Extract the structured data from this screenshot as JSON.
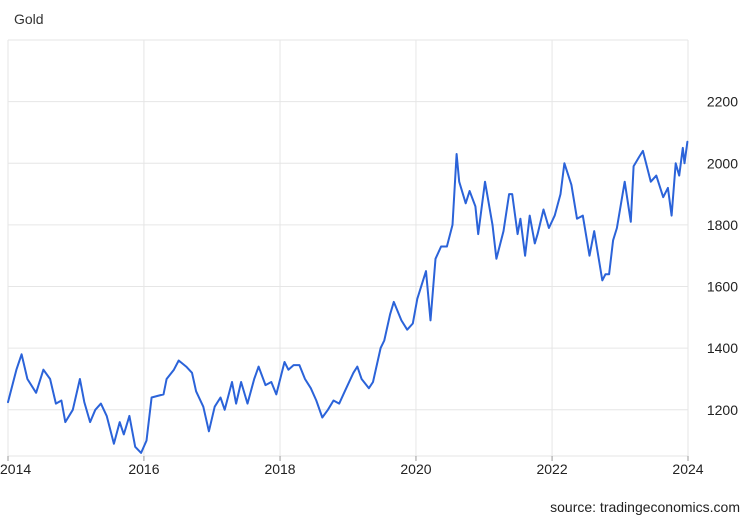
{
  "chart_data": {
    "type": "line",
    "title": "Gold",
    "xlabel": "",
    "ylabel": "",
    "source": "source: tradingeconomics.com",
    "color": "#2b63d9",
    "grid": true,
    "xlim": [
      "2014-01-01",
      "2024-01-01"
    ],
    "ylim": [
      1050,
      2400
    ],
    "x_ticks": [
      {
        "label": "2014",
        "date": "2014-01-01"
      },
      {
        "label": "2016",
        "date": "2016-01-01"
      },
      {
        "label": "2018",
        "date": "2018-01-01"
      },
      {
        "label": "2020",
        "date": "2020-01-01"
      },
      {
        "label": "2022",
        "date": "2022-01-01"
      },
      {
        "label": "2024",
        "date": "2024-01-01"
      }
    ],
    "y_ticks": [
      {
        "label": "1200",
        "value": 1200
      },
      {
        "label": "1400",
        "value": 1400
      },
      {
        "label": "1600",
        "value": 1600
      },
      {
        "label": "1800",
        "value": 1800
      },
      {
        "label": "2000",
        "value": 2000
      },
      {
        "label": "2200",
        "value": 2200
      }
    ],
    "series": [
      {
        "x": [
          "2014-01-01",
          "2014-02-15",
          "2014-03-15",
          "2014-04-15",
          "2014-06-01",
          "2014-07-10",
          "2014-08-15",
          "2014-09-15",
          "2014-10-15",
          "2014-11-05",
          "2014-12-15",
          "2015-01-22",
          "2015-02-15",
          "2015-03-18",
          "2015-04-15",
          "2015-05-15",
          "2015-06-15",
          "2015-07-24",
          "2015-08-24",
          "2015-09-15",
          "2015-10-15",
          "2015-11-15",
          "2015-12-17",
          "2016-01-15",
          "2016-02-11",
          "2016-03-15",
          "2016-04-15",
          "2016-05-02",
          "2016-06-10",
          "2016-07-06",
          "2016-08-15",
          "2016-09-15",
          "2016-10-07",
          "2016-11-15",
          "2016-12-15",
          "2017-01-15",
          "2017-02-15",
          "2017-03-10",
          "2017-04-18",
          "2017-05-10",
          "2017-06-06",
          "2017-07-10",
          "2017-08-15",
          "2017-09-08",
          "2017-10-15",
          "2017-11-15",
          "2017-12-12",
          "2018-01-25",
          "2018-02-15",
          "2018-03-15",
          "2018-04-15",
          "2018-05-15",
          "2018-06-15",
          "2018-07-15",
          "2018-08-16",
          "2018-09-15",
          "2018-10-15",
          "2018-11-15",
          "2018-12-15",
          "2019-01-30",
          "2019-02-20",
          "2019-03-15",
          "2019-04-23",
          "2019-05-15",
          "2019-06-25",
          "2019-07-15",
          "2019-08-15",
          "2019-09-04",
          "2019-10-15",
          "2019-11-15",
          "2019-12-15",
          "2020-01-08",
          "2020-02-24",
          "2020-03-19",
          "2020-04-15",
          "2020-05-15",
          "2020-06-15",
          "2020-07-15",
          "2020-08-06",
          "2020-08-20",
          "2020-09-24",
          "2020-10-15",
          "2020-11-15",
          "2020-11-30",
          "2021-01-06",
          "2021-02-15",
          "2021-03-08",
          "2021-04-15",
          "2021-05-15",
          "2021-06-01",
          "2021-06-30",
          "2021-07-15",
          "2021-08-09",
          "2021-09-03",
          "2021-09-30",
          "2021-10-15",
          "2021-11-16",
          "2021-12-15",
          "2022-01-15",
          "2022-02-15",
          "2022-03-08",
          "2022-04-15",
          "2022-05-15",
          "2022-06-15",
          "2022-07-21",
          "2022-08-15",
          "2022-09-28",
          "2022-10-15",
          "2022-11-03",
          "2022-11-25",
          "2022-12-15",
          "2023-01-26",
          "2023-02-28",
          "2023-03-15",
          "2023-04-13",
          "2023-05-04",
          "2023-06-15",
          "2023-07-15",
          "2023-08-21",
          "2023-09-15",
          "2023-10-05",
          "2023-10-27",
          "2023-11-15",
          "2023-12-04",
          "2023-12-13",
          "2023-12-29"
        ],
        "y": [
          1225,
          1330,
          1380,
          1300,
          1255,
          1330,
          1300,
          1220,
          1230,
          1160,
          1200,
          1300,
          1225,
          1160,
          1200,
          1220,
          1180,
          1090,
          1160,
          1120,
          1180,
          1080,
          1060,
          1100,
          1240,
          1245,
          1250,
          1300,
          1330,
          1360,
          1340,
          1320,
          1260,
          1210,
          1130,
          1210,
          1240,
          1200,
          1290,
          1220,
          1290,
          1220,
          1300,
          1340,
          1280,
          1290,
          1250,
          1355,
          1330,
          1345,
          1345,
          1300,
          1270,
          1230,
          1175,
          1200,
          1230,
          1220,
          1260,
          1320,
          1340,
          1300,
          1270,
          1290,
          1400,
          1425,
          1510,
          1550,
          1490,
          1460,
          1480,
          1560,
          1650,
          1490,
          1690,
          1730,
          1730,
          1800,
          2030,
          1940,
          1870,
          1910,
          1860,
          1770,
          1940,
          1800,
          1690,
          1780,
          1900,
          1900,
          1770,
          1820,
          1700,
          1830,
          1740,
          1770,
          1850,
          1790,
          1830,
          1900,
          2000,
          1930,
          1820,
          1830,
          1700,
          1780,
          1620,
          1640,
          1640,
          1750,
          1790,
          1940,
          1810,
          1990,
          2020,
          2040,
          1940,
          1960,
          1890,
          1920,
          1830,
          2000,
          1960,
          2050,
          2000,
          2070
        ]
      }
    ]
  }
}
